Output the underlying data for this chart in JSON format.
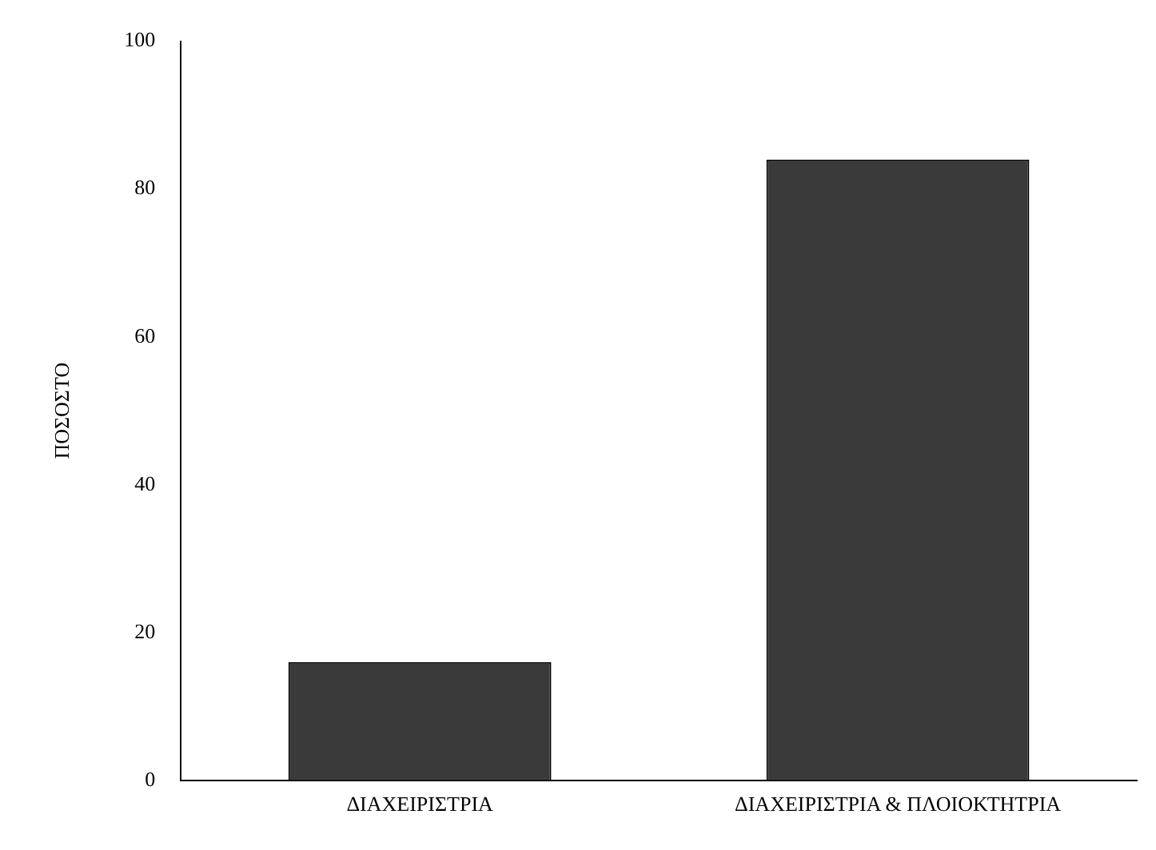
{
  "chart_data": {
    "type": "bar",
    "ylabel": "ΠΟΣΟΣΤΟ",
    "categories": [
      "ΔΙΑΧΕΙΡΙΣΤΡΙΑ",
      "ΔΙΑΧΕΙΡΙΣΤΡΙΑ & ΠΛΟΙΟΚΤΗΤΡΙΑ"
    ],
    "values": [
      16,
      84
    ],
    "color": "#3a3a3a",
    "ylim": [
      0,
      100
    ],
    "yticks": [
      0,
      20,
      40,
      60,
      80,
      100
    ],
    "grid": false,
    "legend": false
  }
}
